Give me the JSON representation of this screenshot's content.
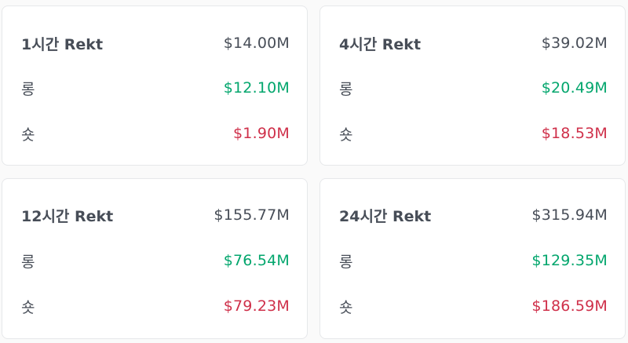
{
  "colors": {
    "text": "#474d57",
    "long": "#03a66d",
    "short": "#cf304a",
    "card_border": "#e6e8ea"
  },
  "cards": [
    {
      "title": "1시간 Rekt",
      "total": "$14.00M",
      "long_label": "롱",
      "long_value": "$12.10M",
      "short_label": "숏",
      "short_value": "$1.90M"
    },
    {
      "title": "4시간 Rekt",
      "total": "$39.02M",
      "long_label": "롱",
      "long_value": "$20.49M",
      "short_label": "숏",
      "short_value": "$18.53M"
    },
    {
      "title": "12시간 Rekt",
      "total": "$155.77M",
      "long_label": "롱",
      "long_value": "$76.54M",
      "short_label": "숏",
      "short_value": "$79.23M"
    },
    {
      "title": "24시간 Rekt",
      "total": "$315.94M",
      "long_label": "롱",
      "long_value": "$129.35M",
      "short_label": "숏",
      "short_value": "$186.59M"
    }
  ]
}
